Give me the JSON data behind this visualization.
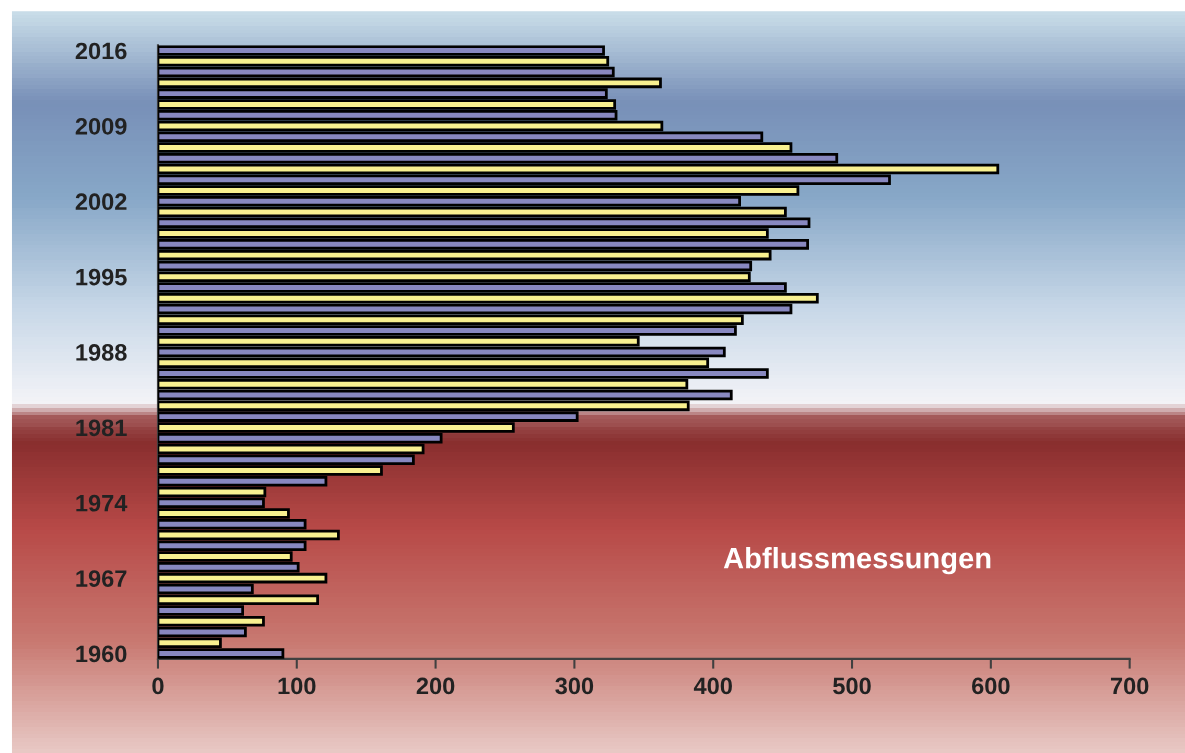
{
  "chart_data": {
    "type": "bar",
    "orientation": "horizontal",
    "categories": [
      "2016",
      null,
      null,
      null,
      null,
      null,
      null,
      "2009",
      null,
      null,
      null,
      null,
      null,
      null,
      "2002",
      null,
      null,
      null,
      null,
      null,
      null,
      "1995",
      null,
      null,
      null,
      null,
      null,
      null,
      "1988",
      null,
      null,
      null,
      null,
      null,
      null,
      "1981",
      null,
      null,
      null,
      null,
      null,
      null,
      "1974",
      null,
      null,
      null,
      null,
      null,
      null,
      "1967",
      null,
      null,
      null,
      null,
      null,
      null,
      "1960"
    ],
    "values": [
      321,
      324,
      328,
      362,
      323,
      329,
      330,
      363,
      435,
      456,
      489,
      605,
      527,
      461,
      419,
      452,
      469,
      439,
      468,
      441,
      427,
      426,
      452,
      475,
      456,
      421,
      416,
      346,
      408,
      396,
      439,
      381,
      413,
      382,
      302,
      256,
      204,
      191,
      184,
      161,
      121,
      77,
      76,
      94,
      106,
      130,
      106,
      96,
      101,
      121,
      68,
      115,
      61,
      76,
      63,
      45,
      90
    ],
    "colors": [
      "#8888c0",
      "#f8f090",
      "#8888c0",
      "#f8f090",
      "#8888c0",
      "#f8f090",
      "#8888c0",
      "#f8f090",
      "#8888c0",
      "#f8f090",
      "#8888c0",
      "#f8f090",
      "#8888c0",
      "#f8f090",
      "#8888c0",
      "#f8f090",
      "#8888c0",
      "#f8f090",
      "#8888c0",
      "#f8f090",
      "#8888c0",
      "#f8f090",
      "#8888c0",
      "#f8f090",
      "#8888c0",
      "#f8f090",
      "#8888c0",
      "#f8f090",
      "#8888c0",
      "#f8f090",
      "#8888c0",
      "#f8f090",
      "#8888c0",
      "#f8f090",
      "#8888c0",
      "#f8f090",
      "#8888c0",
      "#f8f090",
      "#8888c0",
      "#f8f090",
      "#8888c0",
      "#f8f090",
      "#8888c0",
      "#f8f090",
      "#8888c0",
      "#f8f090",
      "#8888c0",
      "#f8f090",
      "#8888c0",
      "#f8f090",
      "#8888c0",
      "#f8f090",
      "#8888c0",
      "#f8f090",
      "#8888c0",
      "#f8f090",
      "#8888c0"
    ],
    "xlim": [
      0,
      700
    ],
    "xticks": [
      0,
      100,
      200,
      300,
      400,
      500,
      600,
      700
    ],
    "annotations": [
      "Abflussmessungen"
    ],
    "grid": false,
    "legend": false
  }
}
